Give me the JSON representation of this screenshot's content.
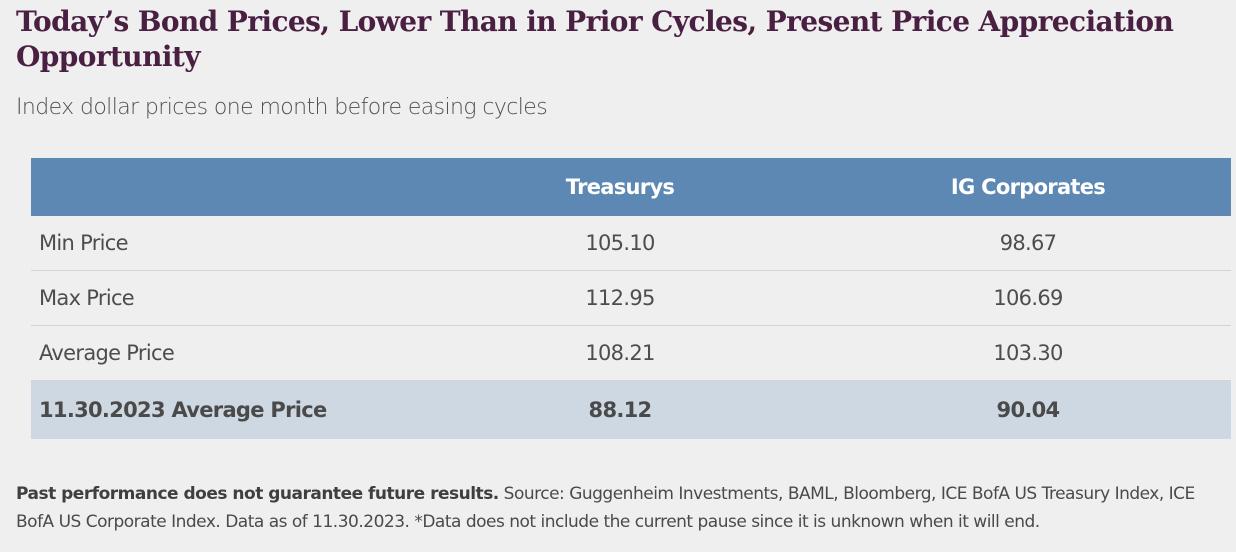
{
  "header": {
    "title": "Today’s Bond Prices, Lower Than in Prior Cycles, Present Price Appreciation Opportunity",
    "subtitle": "Index dollar prices one month before easing cycles"
  },
  "table": {
    "columns": [
      "",
      "Treasurys",
      "IG Corporates"
    ],
    "rows": [
      {
        "label": "Min Price",
        "treasurys": "105.10",
        "ig_corporates": "98.67"
      },
      {
        "label": "Max Price",
        "treasurys": "112.95",
        "ig_corporates": "106.69"
      },
      {
        "label": "Average Price",
        "treasurys": "108.21",
        "ig_corporates": "103.30"
      },
      {
        "label": "11.30.2023 Average Price",
        "treasurys": "88.12",
        "ig_corporates": "90.04",
        "highlighted": true
      }
    ]
  },
  "footnote": {
    "disclaimer": "Past performance does not guarantee future results.",
    "text": "Source: Guggenheim Investments, BAML, Bloomberg, ICE BofA US Treasury Index, ICE BofA US Corporate Index. Data as of 11.30.2023. *Data does not include the current pause since it is unknown when it will end."
  },
  "colors": {
    "background": "#efefef",
    "title": "#4a2042",
    "table_header": "#5d88b4",
    "highlight_row": "#ced8e2"
  }
}
